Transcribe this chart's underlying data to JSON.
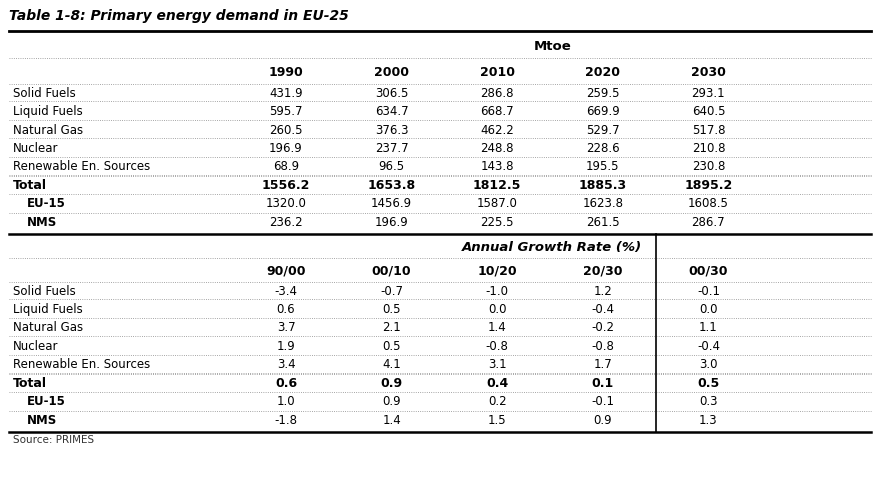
{
  "title": "Table 1-8: Primary energy demand in EU-25",
  "section1_header": "Mtoe",
  "section2_header": "Annual Growth Rate (%)",
  "col_headers1": [
    "1990",
    "2000",
    "2010",
    "2020",
    "2030"
  ],
  "col_headers2": [
    "90/00",
    "00/10",
    "10/20",
    "20/30",
    "00/30"
  ],
  "row_labels_data": [
    "Solid Fuels",
    "Liquid Fuels",
    "Natural Gas",
    "Nuclear",
    "Renewable En. Sources"
  ],
  "data1": [
    [
      "431.9",
      "306.5",
      "286.8",
      "259.5",
      "293.1"
    ],
    [
      "595.7",
      "634.7",
      "668.7",
      "669.9",
      "640.5"
    ],
    [
      "260.5",
      "376.3",
      "462.2",
      "529.7",
      "517.8"
    ],
    [
      "196.9",
      "237.7",
      "248.8",
      "228.6",
      "210.8"
    ],
    [
      "68.9",
      "96.5",
      "143.8",
      "195.5",
      "230.8"
    ]
  ],
  "total1": [
    "1556.2",
    "1653.8",
    "1812.5",
    "1885.3",
    "1895.2"
  ],
  "eu15_1": [
    "1320.0",
    "1456.9",
    "1587.0",
    "1623.8",
    "1608.5"
  ],
  "nms_1": [
    "236.2",
    "196.9",
    "225.5",
    "261.5",
    "286.7"
  ],
  "data2": [
    [
      "-3.4",
      "-0.7",
      "-1.0",
      "1.2",
      "-0.1"
    ],
    [
      "0.6",
      "0.5",
      "0.0",
      "-0.4",
      "0.0"
    ],
    [
      "3.7",
      "2.1",
      "1.4",
      "-0.2",
      "1.1"
    ],
    [
      "1.9",
      "0.5",
      "-0.8",
      "-0.8",
      "-0.4"
    ],
    [
      "3.4",
      "4.1",
      "3.1",
      "1.7",
      "3.0"
    ]
  ],
  "total2": [
    "0.6",
    "0.9",
    "0.4",
    "0.1",
    "0.5"
  ],
  "eu15_2": [
    "1.0",
    "0.9",
    "0.2",
    "-0.1",
    "0.3"
  ],
  "nms_2": [
    "-1.8",
    "1.4",
    "1.5",
    "0.9",
    "1.3"
  ],
  "source": "Source: PRIMES",
  "bg_color": "#ffffff"
}
